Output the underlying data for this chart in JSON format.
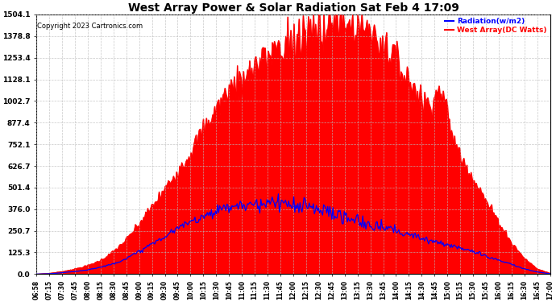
{
  "title": "West Array Power & Solar Radiation Sat Feb 4 17:09",
  "copyright": "Copyright 2023 Cartronics.com",
  "legend_radiation": "Radiation(w/m2)",
  "legend_west": "West Array(DC Watts)",
  "ylabel_values": [
    0.0,
    125.3,
    250.7,
    376.0,
    501.4,
    626.7,
    752.1,
    877.4,
    1002.7,
    1128.1,
    1253.4,
    1378.8,
    1504.1
  ],
  "ylim": [
    0.0,
    1504.1
  ],
  "x_labels": [
    "06:58",
    "07:15",
    "07:30",
    "07:45",
    "08:00",
    "08:15",
    "08:30",
    "08:45",
    "09:00",
    "09:15",
    "09:30",
    "09:45",
    "10:00",
    "10:15",
    "10:30",
    "10:45",
    "11:00",
    "11:15",
    "11:30",
    "11:45",
    "12:00",
    "12:15",
    "12:30",
    "12:45",
    "13:00",
    "13:15",
    "13:30",
    "13:45",
    "14:00",
    "14:15",
    "14:30",
    "14:45",
    "15:00",
    "15:15",
    "15:30",
    "15:45",
    "16:00",
    "16:15",
    "16:30",
    "16:45",
    "17:00"
  ],
  "background_color": "#ffffff",
  "plot_bg_color": "#ffffff",
  "grid_color": "#bbbbbb",
  "fill_color": "#ff0000",
  "radiation_line_color": "#ff0000",
  "west_line_color": "#0000ff",
  "title_color": "#000000",
  "copyright_color": "#000000",
  "legend_radiation_color": "#0000ff",
  "legend_west_color": "#ff0000",
  "radiation": [
    0,
    5,
    15,
    30,
    50,
    80,
    130,
    200,
    290,
    390,
    490,
    600,
    700,
    820,
    950,
    1050,
    1100,
    1150,
    1200,
    1220,
    1230,
    1300,
    1350,
    1400,
    1380,
    1420,
    1350,
    1300,
    1200,
    1100,
    1000,
    900,
    800,
    680,
    560,
    420,
    300,
    180,
    90,
    30,
    5
  ],
  "radiation_spikes": [
    0,
    0,
    0,
    0,
    0,
    0,
    0,
    0,
    0,
    0,
    0,
    0,
    0,
    0,
    0,
    0,
    0,
    0,
    0,
    30,
    60,
    80,
    120,
    150,
    80,
    100,
    60,
    40,
    20,
    0,
    0,
    80,
    50,
    30,
    10,
    0,
    0,
    0,
    0,
    0,
    0
  ],
  "west": [
    0,
    2,
    8,
    15,
    25,
    40,
    60,
    90,
    130,
    175,
    215,
    265,
    305,
    340,
    365,
    385,
    400,
    410,
    415,
    410,
    405,
    400,
    380,
    360,
    330,
    310,
    290,
    270,
    250,
    230,
    210,
    190,
    170,
    150,
    130,
    105,
    80,
    55,
    30,
    12,
    2
  ]
}
